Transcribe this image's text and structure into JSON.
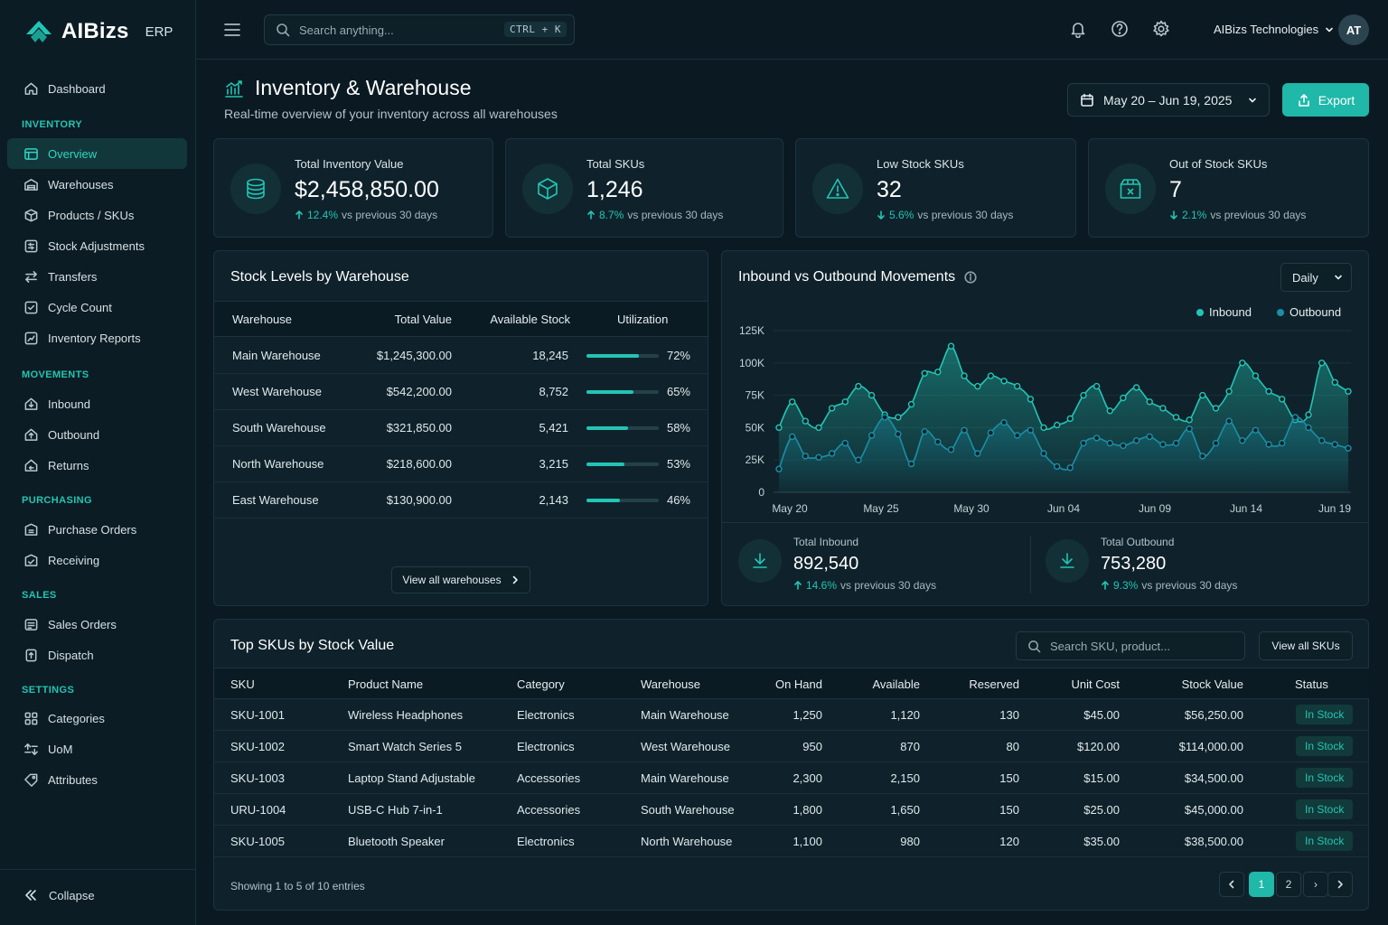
{
  "app": {
    "name": "AIBizs",
    "suffix": "ERP"
  },
  "colors": {
    "accent": "#22c5b5",
    "inbound": "#22c5b5",
    "outbound": "#1a8fa6",
    "background": "#0b1a22"
  },
  "sidebar": {
    "top_item": {
      "label": "Dashboard",
      "icon": "home-icon"
    },
    "sections": [
      {
        "title": "INVENTORY",
        "items": [
          {
            "label": "Overview",
            "icon": "overview-icon",
            "active": true
          },
          {
            "label": "Warehouses",
            "icon": "warehouse-icon"
          },
          {
            "label": "Products / SKUs",
            "icon": "box-icon"
          },
          {
            "label": "Stock Adjustments",
            "icon": "adjust-icon"
          },
          {
            "label": "Transfers",
            "icon": "transfer-icon"
          },
          {
            "label": "Cycle Count",
            "icon": "cycle-icon"
          },
          {
            "label": "Inventory Reports",
            "icon": "report-icon"
          }
        ]
      },
      {
        "title": "MOVEMENTS",
        "items": [
          {
            "label": "Inbound",
            "icon": "inbound-icon"
          },
          {
            "label": "Outbound",
            "icon": "outbound-icon"
          },
          {
            "label": "Returns",
            "icon": "returns-icon"
          }
        ]
      },
      {
        "title": "PURCHASING",
        "items": [
          {
            "label": "Purchase Orders",
            "icon": "purchase-icon"
          },
          {
            "label": "Receiving",
            "icon": "receiving-icon"
          }
        ]
      },
      {
        "title": "SALES",
        "items": [
          {
            "label": "Sales Orders",
            "icon": "sales-icon"
          },
          {
            "label": "Dispatch",
            "icon": "dispatch-icon"
          }
        ]
      },
      {
        "title": "SETTINGS",
        "items": [
          {
            "label": "Categories",
            "icon": "categories-icon"
          },
          {
            "label": "UoM",
            "icon": "uom-icon"
          },
          {
            "label": "Attributes",
            "icon": "attributes-icon"
          }
        ]
      }
    ],
    "collapse_label": "Collapse"
  },
  "header": {
    "search_placeholder": "Search anything...",
    "shortcut": "CTRL + K",
    "company": "AIBizs Technologies",
    "avatar_initials": "AT"
  },
  "page": {
    "title": "Inventory & Warehouse",
    "subtitle": "Real-time overview of your inventory across all warehouses",
    "date_range": "May 20 – Jun 19, 2025",
    "export_label": "Export"
  },
  "kpis": [
    {
      "label": "Total Inventory Value",
      "value": "$2,458,850.00",
      "delta": "12.4%",
      "direction": "up",
      "compare": "vs previous 30 days",
      "icon": "database-icon"
    },
    {
      "label": "Total SKUs",
      "value": "1,246",
      "delta": "8.7%",
      "direction": "up",
      "compare": "vs previous 30 days",
      "icon": "cube-icon"
    },
    {
      "label": "Low Stock SKUs",
      "value": "32",
      "delta": "5.6%",
      "direction": "down",
      "compare": "vs previous 30 days",
      "icon": "warning-icon"
    },
    {
      "label": "Out of Stock SKUs",
      "value": "7",
      "delta": "2.1%",
      "direction": "down",
      "compare": "vs previous 30 days",
      "icon": "empty-box-icon"
    }
  ],
  "stock_levels": {
    "title": "Stock Levels by Warehouse",
    "columns": [
      "Warehouse",
      "Total Value",
      "Available Stock",
      "Utilization"
    ],
    "rows": [
      {
        "warehouse": "Main Warehouse",
        "value": "$1,245,300.00",
        "available": "18,245",
        "utilization": 72,
        "utilization_label": "72%"
      },
      {
        "warehouse": "West Warehouse",
        "value": "$542,200.00",
        "available": "8,752",
        "utilization": 65,
        "utilization_label": "65%"
      },
      {
        "warehouse": "South Warehouse",
        "value": "$321,850.00",
        "available": "5,421",
        "utilization": 58,
        "utilization_label": "58%"
      },
      {
        "warehouse": "North Warehouse",
        "value": "$218,600.00",
        "available": "3,215",
        "utilization": 53,
        "utilization_label": "53%"
      },
      {
        "warehouse": "East Warehouse",
        "value": "$130,900.00",
        "available": "2,143",
        "utilization": 46,
        "utilization_label": "46%"
      }
    ],
    "view_all_label": "View all warehouses"
  },
  "movements": {
    "title": "Inbound vs Outbound Movements",
    "period": "Daily",
    "legend": [
      "Inbound",
      "Outbound"
    ],
    "total_inbound": {
      "label": "Total Inbound",
      "value": "892,540",
      "delta": "14.6%",
      "compare": "vs previous 30 days"
    },
    "total_outbound": {
      "label": "Total Outbound",
      "value": "753,280",
      "delta": "9.3%",
      "compare": "vs previous 30 days"
    }
  },
  "chart_data": {
    "type": "area",
    "x_tick_labels": [
      "May 20",
      "May 25",
      "May 30",
      "Jun 04",
      "Jun 09",
      "Jun 14",
      "Jun 19"
    ],
    "y_tick_labels": [
      "0",
      "25K",
      "50K",
      "75K",
      "100K",
      "125K"
    ],
    "ylim": [
      0,
      125000
    ],
    "legend_position": "top-right",
    "grid": true,
    "series": [
      {
        "name": "Inbound",
        "values": [
          50000,
          70000,
          55000,
          50000,
          65000,
          70000,
          82000,
          75000,
          60000,
          58000,
          68000,
          92000,
          93000,
          113000,
          90000,
          82000,
          90000,
          86000,
          82000,
          72000,
          50000,
          52000,
          57000,
          75000,
          82000,
          63000,
          73000,
          81000,
          70000,
          65000,
          58000,
          56000,
          75000,
          65000,
          78000,
          100000,
          90000,
          78000,
          72000,
          56000,
          60000,
          100000,
          85000,
          78000
        ]
      },
      {
        "name": "Outbound",
        "values": [
          18000,
          43000,
          28000,
          27000,
          30000,
          38000,
          25000,
          44000,
          58000,
          45000,
          22000,
          47000,
          39000,
          33000,
          48000,
          30000,
          46000,
          54000,
          44000,
          48000,
          30000,
          20000,
          19000,
          38000,
          42000,
          38000,
          36000,
          40000,
          43000,
          37000,
          38000,
          49000,
          28000,
          38000,
          55000,
          40000,
          48000,
          37000,
          38000,
          58000,
          50000,
          40000,
          37000,
          34000
        ]
      }
    ]
  },
  "top_skus": {
    "title": "Top SKUs by Stock Value",
    "search_placeholder": "Search SKU, product...",
    "view_all_label": "View all SKUs",
    "columns": [
      "SKU",
      "Product Name",
      "Category",
      "Warehouse",
      "On Hand",
      "Available",
      "Reserved",
      "Unit Cost",
      "Stock Value",
      "Status"
    ],
    "rows": [
      [
        "SKU-1001",
        "Wireless Headphones",
        "Electronics",
        "Main Warehouse",
        "1,250",
        "1,120",
        "130",
        "$45.00",
        "$56,250.00",
        "In Stock"
      ],
      [
        "SKU-1002",
        "Smart Watch Series 5",
        "Electronics",
        "West Warehouse",
        "950",
        "870",
        "80",
        "$120.00",
        "$114,000.00",
        "In Stock"
      ],
      [
        "SKU-1003",
        "Laptop Stand Adjustable",
        "Accessories",
        "Main Warehouse",
        "2,300",
        "2,150",
        "150",
        "$15.00",
        "$34,500.00",
        "In Stock"
      ],
      [
        "URU-1004",
        "USB-C Hub 7-in-1",
        "Accessories",
        "South Warehouse",
        "1,800",
        "1,650",
        "150",
        "$25.00",
        "$45,000.00",
        "In Stock"
      ],
      [
        "SKU-1005",
        "Bluetooth Speaker",
        "Electronics",
        "North Warehouse",
        "1,100",
        "980",
        "120",
        "$35.00",
        "$38,500.00",
        "In Stock"
      ]
    ],
    "showing": "Showing 1 to 5 of 10 entries",
    "pages": [
      "1",
      "2",
      "›"
    ],
    "current_page": "1"
  }
}
